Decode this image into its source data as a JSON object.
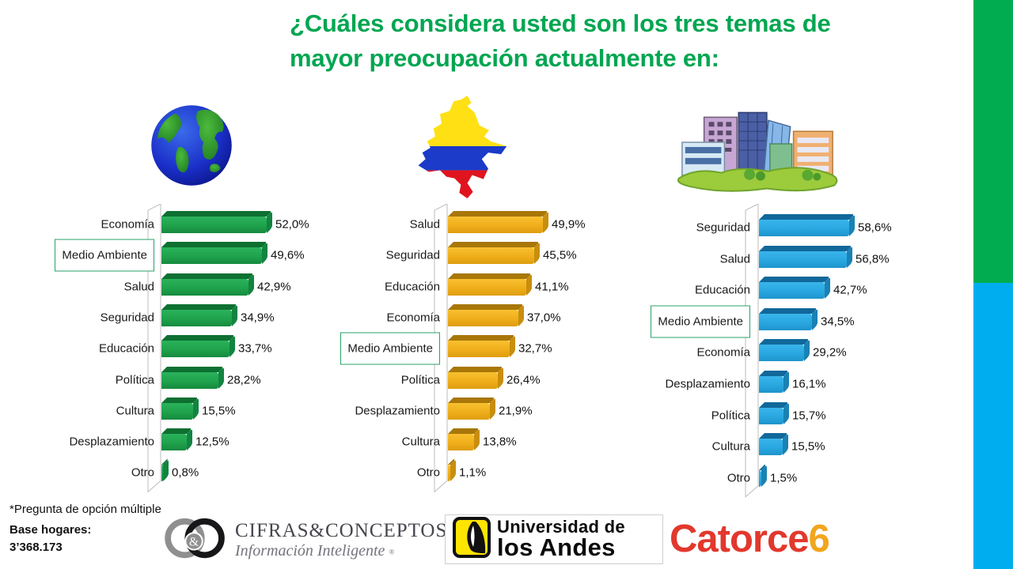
{
  "title": {
    "line1": "¿Cuáles considera usted son los tres temas de",
    "line2": "mayor preocupación actualmente en:",
    "color": "#00A651"
  },
  "side_stripes": {
    "green": "#00AC4F",
    "blue": "#00AEEF"
  },
  "highlight_box_color": "#2AA06A",
  "chart_data": [
    {
      "type": "bar",
      "orientation": "horizontal",
      "icon": "globe-icon",
      "colors": {
        "face": "#1FA24C",
        "face_light": "#2BB25B",
        "face_dark": "#168A3E",
        "bevel": "#0D7031",
        "cap": "#128441"
      },
      "categories": [
        "Economía",
        "Medio Ambiente",
        "Salud",
        "Seguridad",
        "Educación",
        "Política",
        "Cultura",
        "Desplazamiento",
        "Otro"
      ],
      "values": [
        52.0,
        49.6,
        42.9,
        34.9,
        33.7,
        28.2,
        15.5,
        12.5,
        0.8
      ],
      "value_labels": [
        "52,0%",
        "49,6%",
        "42,9%",
        "34,9%",
        "33,7%",
        "28,2%",
        "15,5%",
        "12,5%",
        "0,8%"
      ],
      "value_suffix": "%",
      "grid": false,
      "highlighted_category": "Medio Ambiente"
    },
    {
      "type": "bar",
      "orientation": "horizontal",
      "icon": "colombia-map-icon",
      "colors": {
        "face": "#F0AE1B",
        "face_light": "#F8C030",
        "face_dark": "#DE9D10",
        "bevel": "#A87708",
        "cap": "#C88E0D"
      },
      "categories": [
        "Salud",
        "Seguridad",
        "Educación",
        "Economía",
        "Medio Ambiente",
        "Política",
        "Desplazamiento",
        "Cultura",
        "Otro"
      ],
      "values": [
        49.9,
        45.5,
        41.1,
        37.0,
        32.7,
        26.4,
        21.9,
        13.8,
        1.1
      ],
      "value_labels": [
        "49,9%",
        "45,5%",
        "41,1%",
        "37,0%",
        "32,7%",
        "26,4%",
        "21,9%",
        "13,8%",
        "1,1%"
      ],
      "value_suffix": "%",
      "grid": false,
      "highlighted_category": "Medio Ambiente"
    },
    {
      "type": "bar",
      "orientation": "horizontal",
      "icon": "city-icon",
      "colors": {
        "face": "#29A7E0",
        "face_light": "#39B5EC",
        "face_dark": "#1E94CC",
        "bevel": "#11689A",
        "cap": "#1982B4"
      },
      "categories": [
        "Seguridad",
        "Salud",
        "Educación",
        "Medio Ambiente",
        "Economía",
        "Desplazamiento",
        "Política",
        "Cultura",
        "Otro"
      ],
      "values": [
        58.6,
        56.8,
        42.7,
        34.5,
        29.2,
        16.1,
        15.7,
        15.5,
        1.5
      ],
      "value_labels": [
        "58,6%",
        "56,8%",
        "42,7%",
        "34,5%",
        "29,2%",
        "16,1%",
        "15,7%",
        "15,5%",
        "1,5%"
      ],
      "value_suffix": "%",
      "grid": false,
      "highlighted_category": "Medio Ambiente"
    }
  ],
  "footnote": "*Pregunta de opción múltiple",
  "base": {
    "label": "Base hogares:",
    "value": "3’368.173"
  },
  "logos": {
    "cifras": {
      "wordmark": "CIFRAS&CONCEPTOS",
      "tagline": "Información Inteligente",
      "registered": "®",
      "monogram_amp": "&"
    },
    "uniandes": {
      "line1": "Universidad de",
      "line2": "los Andes"
    },
    "catorce": {
      "name": "Catorce",
      "six": "6",
      "name_color": "#E2382D",
      "six_color": "#F2A51D"
    }
  }
}
